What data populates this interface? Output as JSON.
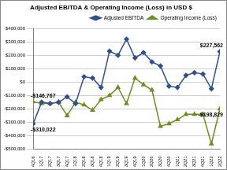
{
  "chart_data": {
    "type": "line",
    "title": "Adjusted EBITDA & Operating Income (Loss) in USD $",
    "categories": [
      "4Q16",
      "1Q17",
      "2Q17",
      "3Q17",
      "4Q17",
      "1Q18",
      "2Q18",
      "3Q18",
      "4Q18",
      "1Q19",
      "2Q19",
      "3Q19",
      "4Q19",
      "1Q20",
      "2Q20",
      "3Q20",
      "4Q20",
      "1Q21",
      "2Q21",
      "3Q21",
      "4Q21",
      "1Q22",
      "2Q22"
    ],
    "series": [
      {
        "name": "Adjusted EBITDA",
        "color": "#2f4f8f",
        "marker": "diamond",
        "values": [
          -310022,
          -150000,
          -160000,
          -150000,
          -110000,
          -160000,
          40000,
          30000,
          -40000,
          230000,
          200000,
          320000,
          180000,
          220000,
          150000,
          120000,
          -30000,
          -40000,
          50000,
          70000,
          60000,
          -50000,
          227562
        ]
      },
      {
        "name": "Operating Income (Loss)",
        "color": "#6b8e23",
        "marker": "triangle",
        "values": [
          -146767,
          -160000,
          -160000,
          -150000,
          -250000,
          -150000,
          -170000,
          -210000,
          -130000,
          -100000,
          -40000,
          -160000,
          30000,
          -20000,
          -60000,
          -330000,
          -310000,
          -280000,
          -240000,
          -240000,
          -240000,
          -460000,
          -198829
        ]
      }
    ],
    "ylim": [
      -500000,
      400000
    ],
    "yticks": [
      {
        "value": -500000,
        "label": "-$500,000"
      },
      {
        "value": -400000,
        "label": "-$400,000"
      },
      {
        "value": -300000,
        "label": "-$300,000"
      },
      {
        "value": -200000,
        "label": "-$200,000"
      },
      {
        "value": -100000,
        "label": "-$100,000"
      },
      {
        "value": 0,
        "label": "$0"
      },
      {
        "value": 100000,
        "label": "$100,000"
      },
      {
        "value": 200000,
        "label": "$200,000"
      },
      {
        "value": 300000,
        "label": "$300,000"
      },
      {
        "value": 400000,
        "label": "$400,000"
      }
    ],
    "annotations": [
      {
        "text": "-$310,022",
        "series": "Adjusted EBITDA",
        "x": "4Q16"
      },
      {
        "text": "-$146,767",
        "series": "Operating Income (Loss)",
        "x": "4Q16"
      },
      {
        "text": "$227,562",
        "series": "Adjusted EBITDA",
        "x": "2Q22"
      },
      {
        "text": "-$198,829",
        "series": "Operating Income (Loss)",
        "x": "2Q22"
      }
    ],
    "grid": true,
    "legend": "upper right"
  }
}
